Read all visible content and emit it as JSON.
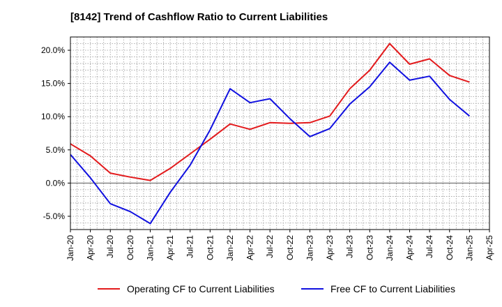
{
  "chart_data": {
    "type": "line",
    "title": "[8142]  Trend of Cashflow Ratio to Current Liabilities",
    "x": [
      "Jan-20",
      "Apr-20",
      "Jul-20",
      "Oct-20",
      "Jan-21",
      "Apr-21",
      "Jul-21",
      "Oct-21",
      "Jan-22",
      "Apr-22",
      "Jul-22",
      "Oct-22",
      "Jan-23",
      "Apr-23",
      "Jul-23",
      "Oct-23",
      "Jan-24",
      "Apr-24",
      "Jul-24",
      "Oct-24",
      "Jan-25",
      "Apr-25"
    ],
    "x_tick_labels": [
      "Jan-20",
      "Apr-20",
      "Jul-20",
      "Oct-20",
      "Jan-21",
      "Apr-21",
      "Jul-21",
      "Oct-21",
      "Jan-22",
      "Apr-22",
      "Jul-22",
      "Oct-22",
      "Jan-23",
      "Apr-23",
      "Jul-23",
      "Oct-23",
      "Jan-24",
      "Apr-24",
      "Jul-24",
      "Oct-24",
      "Jan-25",
      "Apr-25"
    ],
    "ylim": [
      -7.0,
      22.0
    ],
    "y_ticks": [
      -5.0,
      0.0,
      5.0,
      10.0,
      15.0,
      20.0
    ],
    "y_tick_labels": [
      "-5.0%",
      "0.0%",
      "5.0%",
      "10.0%",
      "15.0%",
      "20.0%"
    ],
    "grid": true,
    "legend_position": "bottom",
    "series": [
      {
        "name": "Operating CF to Current Liabilities",
        "color": "#e31a1c",
        "values": [
          5.9,
          4.1,
          1.5,
          0.9,
          0.4,
          2.2,
          4.4,
          6.6,
          8.9,
          8.1,
          9.1,
          9.0,
          9.1,
          10.1,
          14.2,
          17.0,
          21.0,
          17.9,
          18.7,
          16.2,
          15.2,
          null
        ]
      },
      {
        "name": "Free CF to Current Liabilities",
        "color": "#1010e0",
        "values": [
          4.3,
          0.8,
          -3.1,
          -4.3,
          -6.1,
          -1.4,
          2.7,
          8.0,
          14.2,
          12.1,
          12.7,
          9.7,
          7.0,
          8.2,
          11.9,
          14.5,
          18.2,
          15.5,
          16.1,
          12.6,
          10.1,
          null
        ]
      }
    ]
  }
}
